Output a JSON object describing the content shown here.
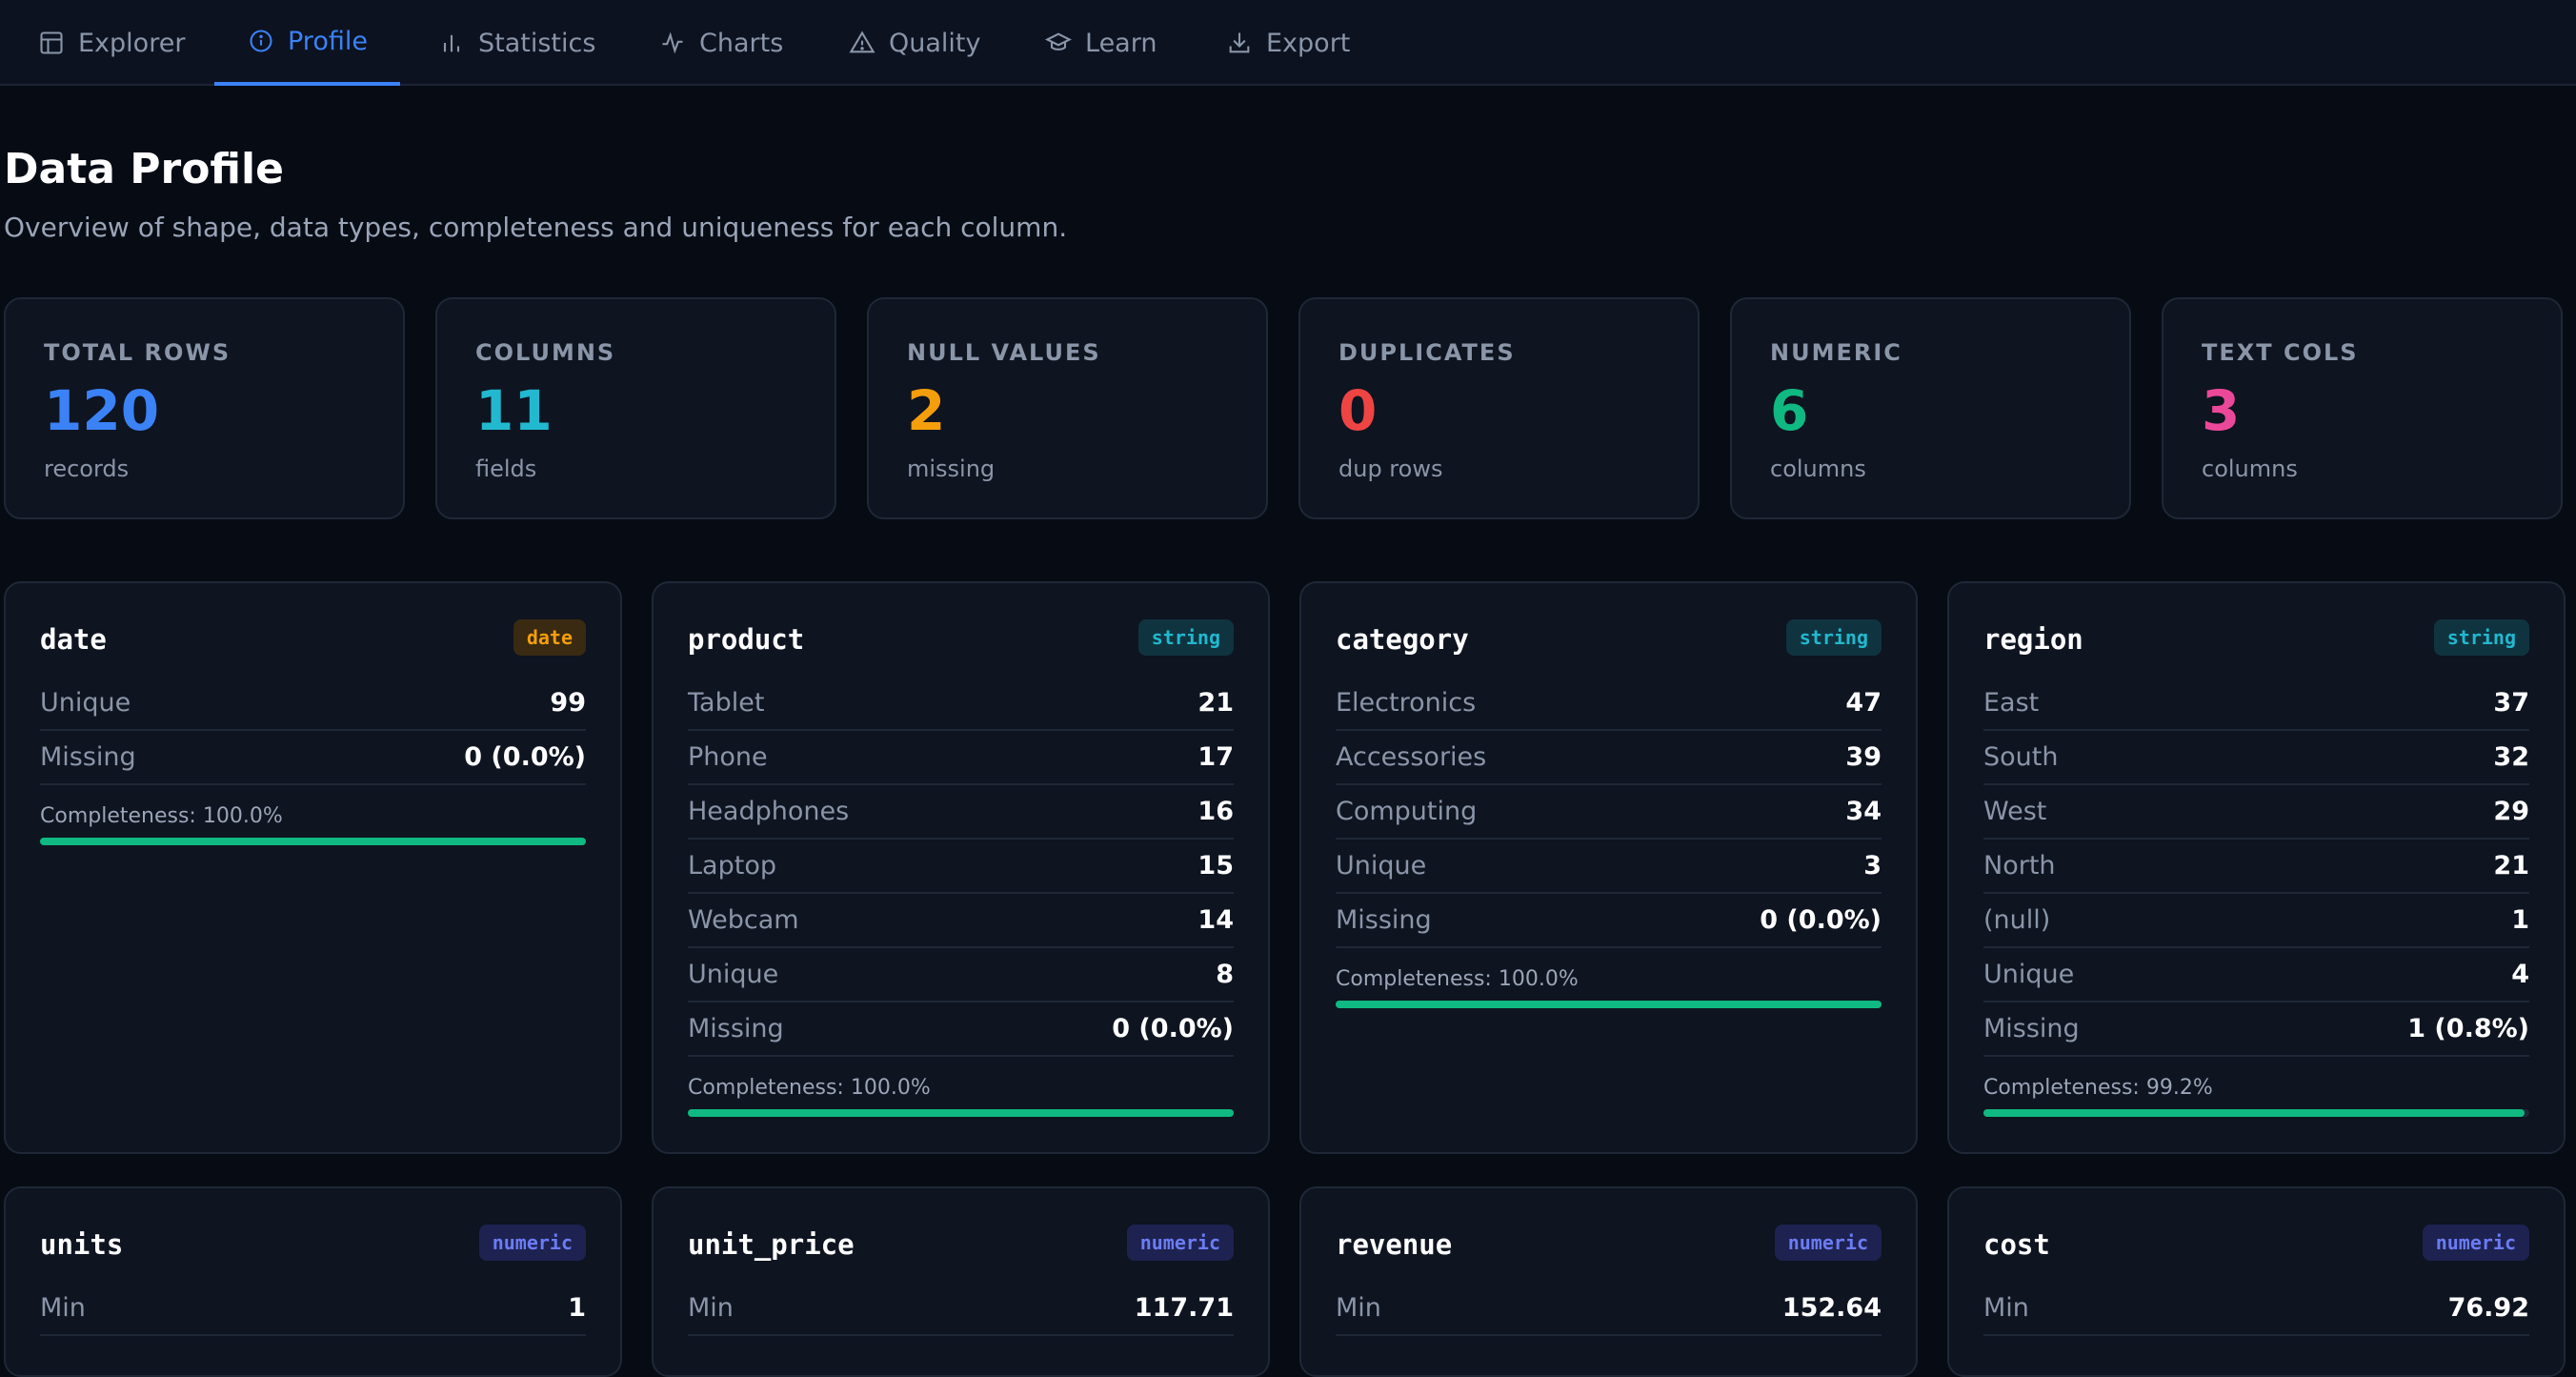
{
  "nav": {
    "tabs": [
      {
        "label": "Explorer",
        "icon": "table-icon"
      },
      {
        "label": "Profile",
        "icon": "info-circle-icon",
        "active": true
      },
      {
        "label": "Statistics",
        "icon": "bar-chart-icon"
      },
      {
        "label": "Charts",
        "icon": "activity-icon"
      },
      {
        "label": "Quality",
        "icon": "warning-triangle-icon"
      },
      {
        "label": "Learn",
        "icon": "graduation-cap-icon"
      },
      {
        "label": "Export",
        "icon": "download-icon"
      }
    ]
  },
  "page": {
    "title": "Data Profile",
    "subtitle": "Overview of shape, data types, completeness and uniqueness for each column."
  },
  "stats": [
    {
      "label": "TOTAL ROWS",
      "value": "120",
      "sub": "records",
      "color": "#3b82f6"
    },
    {
      "label": "COLUMNS",
      "value": "11",
      "sub": "fields",
      "color": "#22b8cf"
    },
    {
      "label": "NULL VALUES",
      "value": "2",
      "sub": "missing",
      "color": "#f59e0b"
    },
    {
      "label": "DUPLICATES",
      "value": "0",
      "sub": "dup rows",
      "color": "#ef4444"
    },
    {
      "label": "NUMERIC",
      "value": "6",
      "sub": "columns",
      "color": "#10b981"
    },
    {
      "label": "TEXT COLS",
      "value": "3",
      "sub": "columns",
      "color": "#ec4899"
    }
  ],
  "columns": [
    {
      "name": "date",
      "type": "date",
      "rows": [
        [
          "Unique",
          "99"
        ],
        [
          "Missing",
          "0 (0.0%)"
        ]
      ],
      "completeness_label": "Completeness: 100.0%",
      "completeness": 100.0
    },
    {
      "name": "product",
      "type": "string",
      "rows": [
        [
          "Tablet",
          "21"
        ],
        [
          "Phone",
          "17"
        ],
        [
          "Headphones",
          "16"
        ],
        [
          "Laptop",
          "15"
        ],
        [
          "Webcam",
          "14"
        ],
        [
          "Unique",
          "8"
        ],
        [
          "Missing",
          "0 (0.0%)"
        ]
      ],
      "completeness_label": "Completeness: 100.0%",
      "completeness": 100.0
    },
    {
      "name": "category",
      "type": "string",
      "rows": [
        [
          "Electronics",
          "47"
        ],
        [
          "Accessories",
          "39"
        ],
        [
          "Computing",
          "34"
        ],
        [
          "Unique",
          "3"
        ],
        [
          "Missing",
          "0 (0.0%)"
        ]
      ],
      "completeness_label": "Completeness: 100.0%",
      "completeness": 100.0
    },
    {
      "name": "region",
      "type": "string",
      "rows": [
        [
          "East",
          "37"
        ],
        [
          "South",
          "32"
        ],
        [
          "West",
          "29"
        ],
        [
          "North",
          "21"
        ],
        [
          "(null)",
          "1"
        ],
        [
          "Unique",
          "4"
        ],
        [
          "Missing",
          "1 (0.8%)"
        ]
      ],
      "completeness_label": "Completeness: 99.2%",
      "completeness": 99.2
    },
    {
      "name": "units",
      "type": "numeric",
      "rows": [
        [
          "Min",
          "1"
        ]
      ]
    },
    {
      "name": "unit_price",
      "type": "numeric",
      "rows": [
        [
          "Min",
          "117.71"
        ]
      ]
    },
    {
      "name": "revenue",
      "type": "numeric",
      "rows": [
        [
          "Min",
          "152.64"
        ]
      ]
    },
    {
      "name": "cost",
      "type": "numeric",
      "rows": [
        [
          "Min",
          "76.92"
        ]
      ]
    }
  ]
}
